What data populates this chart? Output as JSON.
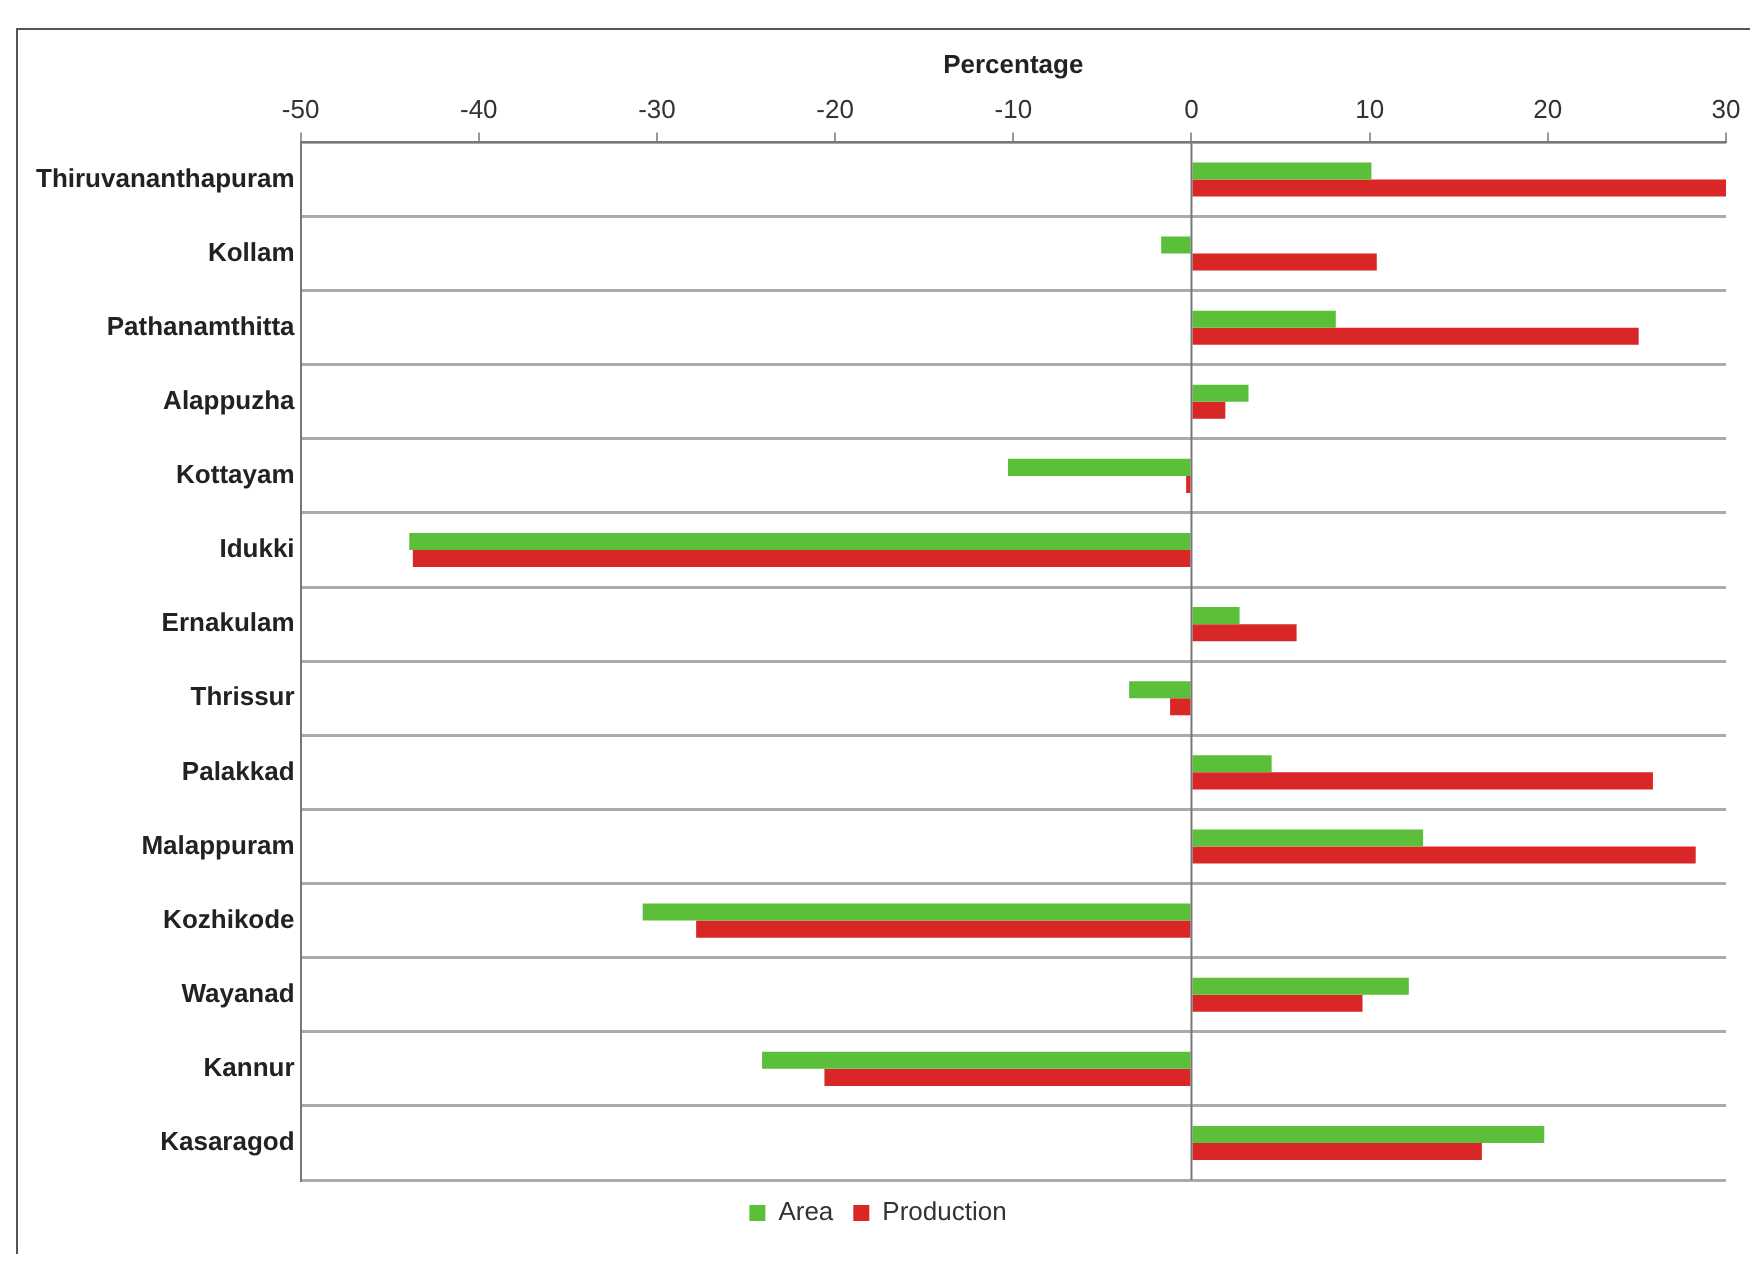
{
  "chart_data": {
    "type": "bar",
    "orientation": "horizontal",
    "xlabel": "Percentage",
    "categories": [
      "Thiruvananthapuram",
      "Kollam",
      "Pathanamthitta",
      "Alappuzha",
      "Kottayam",
      "Idukki",
      "Ernakulam",
      "Thrissur",
      "Palakkad",
      "Malappuram",
      "Kozhikode",
      "Wayanad",
      "Kannur",
      "Kasaragod"
    ],
    "series": [
      {
        "name": "Area",
        "color": "#5cbf3a",
        "values": [
          10.1,
          -1.7,
          8.1,
          3.2,
          -10.3,
          -43.9,
          2.7,
          -3.5,
          4.5,
          13.0,
          -30.8,
          12.2,
          -24.1,
          19.8
        ]
      },
      {
        "name": "Production",
        "color": "#d92626",
        "values": [
          30,
          10.4,
          25.1,
          1.9,
          -0.3,
          -43.7,
          5.9,
          -1.2,
          25.9,
          28.3,
          -27.8,
          9.6,
          -20.6,
          16.3
        ]
      }
    ],
    "xlim": [
      -50,
      30
    ],
    "xticks": [
      -50,
      -40,
      -30,
      -20,
      -10,
      0,
      10,
      20,
      30
    ],
    "grid": "y",
    "legend": "bottom"
  }
}
